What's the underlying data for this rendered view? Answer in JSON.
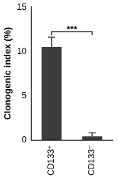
{
  "chart_data": {
    "type": "bar",
    "y_label": "Clonogenic index (%)",
    "categories": [
      "CD133⁺",
      "CD133⁻"
    ],
    "values": [
      10.5,
      0.4
    ],
    "error": [
      1.1,
      0.4
    ],
    "color": "#3c3c3c",
    "ylim": [
      0,
      15
    ],
    "yticks": [
      0,
      5,
      10,
      15
    ],
    "grid": false,
    "annotation": "***"
  }
}
